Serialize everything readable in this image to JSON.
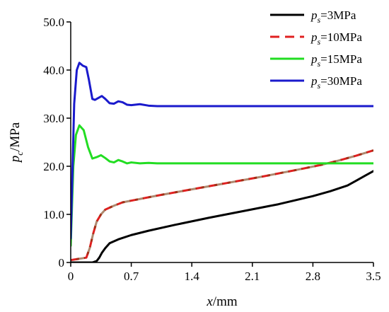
{
  "chart_data": {
    "type": "line",
    "title": "",
    "xlabel": {
      "var": "x",
      "unit": "/mm"
    },
    "ylabel": {
      "var": "p",
      "sub": "c",
      "unit": "/MPa"
    },
    "xlim": [
      0,
      3.5
    ],
    "ylim": [
      0,
      50
    ],
    "xticks": [
      0,
      0.7,
      1.4,
      2.1,
      2.8,
      3.5
    ],
    "xtick_labels": [
      "0",
      "0.7",
      "1.4",
      "2.1",
      "2.8",
      "3.5"
    ],
    "yticks": [
      0,
      10,
      20,
      30,
      40,
      50
    ],
    "ytick_labels": [
      "0",
      "10.0",
      "20.0",
      "30.0",
      "40.0",
      "50.0"
    ],
    "grid": false,
    "legend_position": "top-right",
    "series": [
      {
        "name": "ps=3MPa",
        "legend": {
          "var": "p",
          "sub": "s",
          "value": "=3MPa"
        },
        "color": "#000000",
        "dash": "solid",
        "x": [
          0,
          0.25,
          0.3,
          0.33,
          0.36,
          0.4,
          0.45,
          0.55,
          0.7,
          0.9,
          1.2,
          1.6,
          2.0,
          2.4,
          2.8,
          3.0,
          3.2,
          3.3,
          3.4,
          3.5
        ],
        "y": [
          0,
          0,
          0.3,
          1.0,
          2.0,
          3.0,
          4.0,
          4.8,
          5.7,
          6.6,
          7.8,
          9.3,
          10.7,
          12.1,
          13.8,
          14.8,
          16.0,
          17.0,
          18.0,
          19.0
        ]
      },
      {
        "name": "ps=10MPa",
        "legend": {
          "var": "p",
          "sub": "s",
          "value": "=10MPa"
        },
        "color": "#e02020",
        "color2": "#7a3a10",
        "dash": "dashed",
        "x": [
          0,
          0.18,
          0.22,
          0.26,
          0.3,
          0.35,
          0.4,
          0.5,
          0.6,
          0.8,
          1.0,
          1.4,
          1.8,
          2.2,
          2.6,
          2.9,
          3.1,
          3.3,
          3.5
        ],
        "y": [
          0.5,
          1.0,
          3.0,
          6.0,
          8.5,
          10.0,
          11.0,
          11.8,
          12.5,
          13.2,
          13.9,
          15.2,
          16.5,
          17.8,
          19.2,
          20.3,
          21.2,
          22.2,
          23.3
        ]
      },
      {
        "name": "ps=15MPa",
        "legend": {
          "var": "p",
          "sub": "s",
          "value": "=15MPa"
        },
        "color": "#22dd22",
        "dash": "solid",
        "x": [
          0,
          0.03,
          0.06,
          0.1,
          0.15,
          0.2,
          0.25,
          0.3,
          0.35,
          0.4,
          0.45,
          0.5,
          0.55,
          0.6,
          0.65,
          0.7,
          0.8,
          0.9,
          1.0,
          1.2,
          1.5,
          2.0,
          2.5,
          3.0,
          3.5
        ],
        "y": [
          3.5,
          20.0,
          26.5,
          28.5,
          27.5,
          24.0,
          21.6,
          21.9,
          22.3,
          21.7,
          21.0,
          20.8,
          21.3,
          21.0,
          20.6,
          20.8,
          20.6,
          20.7,
          20.6,
          20.6,
          20.6,
          20.6,
          20.6,
          20.6,
          20.6
        ]
      },
      {
        "name": "ps=30MPa",
        "legend": {
          "var": "p",
          "sub": "s",
          "value": "=30MPa"
        },
        "color": "#1a1acc",
        "dash": "solid",
        "x": [
          0,
          0.04,
          0.07,
          0.1,
          0.14,
          0.18,
          0.21,
          0.25,
          0.28,
          0.32,
          0.36,
          0.4,
          0.45,
          0.5,
          0.55,
          0.6,
          0.65,
          0.7,
          0.8,
          0.9,
          1.0,
          1.2,
          1.5,
          2.0,
          2.5,
          3.0,
          3.5
        ],
        "y": [
          5.0,
          33.0,
          40.0,
          41.5,
          40.9,
          40.6,
          38.0,
          34.0,
          33.8,
          34.2,
          34.6,
          34.0,
          33.1,
          33.0,
          33.5,
          33.3,
          32.8,
          32.7,
          32.9,
          32.6,
          32.5,
          32.5,
          32.5,
          32.5,
          32.5,
          32.5,
          32.5
        ]
      }
    ]
  }
}
